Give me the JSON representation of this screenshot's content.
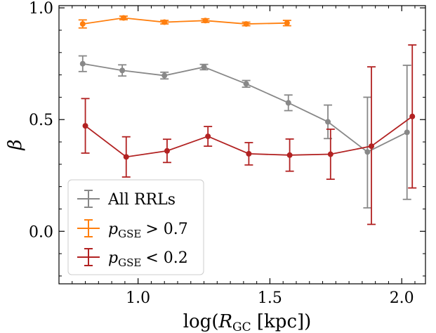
{
  "chart_data": {
    "type": "line",
    "xlabel": "log(R_GC [kpc])",
    "ylabel": "β",
    "xlim": [
      0.7,
      2.09
    ],
    "ylim": [
      -0.235,
      1.01
    ],
    "xticks": [
      1.0,
      1.5,
      2.0
    ],
    "xtick_labels": [
      "1.0",
      "1.5",
      "2.0"
    ],
    "yticks": [
      0.0,
      0.5,
      1.0
    ],
    "ytick_labels": [
      "0.0",
      "0.5",
      "1.0"
    ],
    "grid": false,
    "legend_position": "lower-left",
    "series": [
      {
        "name": "All RRLs",
        "color": "#888888",
        "x": [
          0.79,
          0.94,
          1.1,
          1.25,
          1.41,
          1.57,
          1.72,
          1.87,
          2.02
        ],
        "y": [
          0.75,
          0.72,
          0.697,
          0.735,
          0.66,
          0.575,
          0.49,
          0.355,
          0.443
        ],
        "err_low": [
          0.035,
          0.025,
          0.015,
          0.012,
          0.015,
          0.035,
          0.075,
          0.25,
          0.3
        ],
        "err_high": [
          0.035,
          0.025,
          0.015,
          0.012,
          0.015,
          0.035,
          0.075,
          0.245,
          0.3
        ]
      },
      {
        "name": "p_GSE > 0.7",
        "color": "#ff7f0e",
        "x": [
          0.79,
          0.945,
          1.1,
          1.255,
          1.41,
          1.565
        ],
        "y": [
          0.928,
          0.955,
          0.936,
          0.943,
          0.928,
          0.932
        ],
        "err_low": [
          0.018,
          0.008,
          0.008,
          0.008,
          0.008,
          0.012
        ],
        "err_high": [
          0.018,
          0.008,
          0.008,
          0.008,
          0.008,
          0.012
        ]
      },
      {
        "name": "p_GSE < 0.2",
        "color": "#b22222",
        "x": [
          0.8,
          0.955,
          1.11,
          1.265,
          1.42,
          1.575,
          1.73,
          1.885,
          2.04
        ],
        "y": [
          0.472,
          0.333,
          0.36,
          0.425,
          0.347,
          0.341,
          0.345,
          0.381,
          0.514
        ],
        "err_low": [
          0.122,
          0.09,
          0.052,
          0.044,
          0.05,
          0.072,
          0.112,
          0.35,
          0.32
        ],
        "err_high": [
          0.122,
          0.09,
          0.052,
          0.044,
          0.05,
          0.072,
          0.112,
          0.355,
          0.32
        ]
      }
    ]
  },
  "legend": {
    "all_rrls": "All RRLs",
    "gse_high_sub": "GSE",
    "gse_high_rest": "> 0.7",
    "gse_low_sub": "GSE",
    "gse_low_rest": "< 0.2"
  },
  "axes": {
    "x_label_prefix": "log(",
    "x_label_R": "R",
    "x_label_sub": "GC",
    "x_label_suffix": " [kpc])",
    "y_label": "β"
  }
}
